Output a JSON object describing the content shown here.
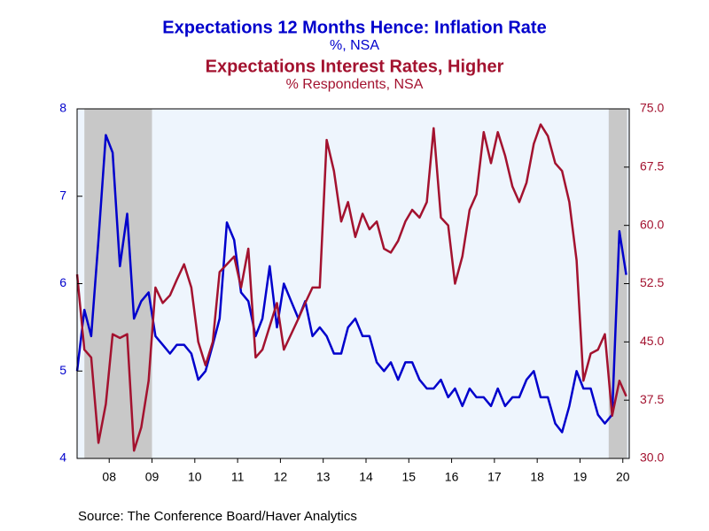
{
  "chart_data": {
    "type": "line",
    "title": "Expectations 12 Months Hence: Inflation Rate",
    "subtitle": "%, NSA",
    "title2": "Expectations Interest Rates, Higher",
    "subtitle2": "% Respondents, NSA",
    "source": "Source:  The Conference Board/Haver Analytics",
    "x": [
      2007.75,
      2007.92,
      2008.08,
      2008.25,
      2008.42,
      2008.58,
      2008.75,
      2008.92,
      2009.08,
      2009.25,
      2009.42,
      2009.58,
      2009.75,
      2009.92,
      2010.08,
      2010.25,
      2010.42,
      2010.58,
      2010.75,
      2010.92,
      2011.08,
      2011.25,
      2011.42,
      2011.58,
      2011.75,
      2011.92,
      2012.08,
      2012.25,
      2012.42,
      2012.58,
      2012.75,
      2012.92,
      2013.08,
      2013.25,
      2013.42,
      2013.58,
      2013.75,
      2013.92,
      2014.08,
      2014.25,
      2014.42,
      2014.58,
      2014.75,
      2014.92,
      2015.08,
      2015.25,
      2015.42,
      2015.58,
      2015.75,
      2015.92,
      2016.08,
      2016.25,
      2016.42,
      2016.58,
      2016.75,
      2016.92,
      2017.08,
      2017.25,
      2017.42,
      2017.58,
      2017.75,
      2017.92,
      2018.08,
      2018.25,
      2018.42,
      2018.58,
      2018.75,
      2018.92,
      2019.08,
      2019.25,
      2019.42,
      2019.58,
      2019.75,
      2019.92,
      2020.08,
      2020.25,
      2020.42,
      2020.58
    ],
    "series": [
      {
        "name": "Expectations 12 Months Hence: Inflation Rate",
        "color": "#0000cc",
        "values": [
          5.0,
          5.7,
          5.4,
          6.5,
          7.7,
          7.5,
          6.2,
          6.8,
          5.6,
          5.8,
          5.9,
          5.4,
          5.3,
          5.2,
          5.3,
          5.3,
          5.2,
          4.9,
          5.0,
          5.3,
          5.6,
          6.7,
          6.5,
          5.9,
          5.8,
          5.4,
          5.6,
          6.2,
          5.5,
          6.0,
          5.8,
          5.6,
          5.8,
          5.4,
          5.5,
          5.4,
          5.2,
          5.2,
          5.5,
          5.6,
          5.4,
          5.4,
          5.1,
          5.0,
          5.1,
          4.9,
          5.1,
          5.1,
          4.9,
          4.8,
          4.8,
          4.9,
          4.7,
          4.8,
          4.6,
          4.8,
          4.7,
          4.7,
          4.6,
          4.8,
          4.6,
          4.7,
          4.7,
          4.9,
          5.0,
          4.7,
          4.7,
          4.4,
          4.3,
          4.6,
          5.0,
          4.8,
          4.8,
          4.5,
          4.4,
          4.5,
          6.6,
          6.1
        ]
      },
      {
        "name": "Expectations Interest Rates, Higher",
        "color": "#a3122f",
        "axis": "y2",
        "values": [
          53.7,
          44,
          43,
          32,
          37,
          46,
          45.5,
          46,
          31,
          34,
          40,
          52,
          50,
          51,
          53,
          55,
          52,
          45,
          42,
          45,
          54,
          55,
          56,
          52,
          57,
          43,
          44,
          47,
          50,
          44,
          46,
          48,
          50,
          52,
          52,
          71,
          67,
          60.5,
          63,
          58.5,
          61.5,
          59.5,
          60.5,
          57,
          56.5,
          58,
          60.5,
          62,
          61,
          63,
          72.5,
          61,
          60,
          52.5,
          56,
          62,
          64,
          72,
          68,
          72,
          69,
          65,
          63,
          65.5,
          70.5,
          73,
          71.5,
          68,
          67,
          63,
          55.5,
          40,
          43.5,
          44,
          46,
          35.5,
          40,
          38
        ]
      }
    ],
    "shading": [
      [
        2007.92,
        2009.5
      ],
      [
        2020.17,
        2020.6
      ]
    ],
    "shading_color": "#c8c8c8",
    "xlim": [
      2007.75,
      2020.65
    ],
    "xticks": [
      {
        "value": 2008.5,
        "label": "08"
      },
      {
        "value": 2009.5,
        "label": "09"
      },
      {
        "value": 2010.5,
        "label": "10"
      },
      {
        "value": 2011.5,
        "label": "11"
      },
      {
        "value": 2012.5,
        "label": "12"
      },
      {
        "value": 2013.5,
        "label": "13"
      },
      {
        "value": 2014.5,
        "label": "14"
      },
      {
        "value": 2015.5,
        "label": "15"
      },
      {
        "value": 2016.5,
        "label": "16"
      },
      {
        "value": 2017.5,
        "label": "17"
      },
      {
        "value": 2018.5,
        "label": "18"
      },
      {
        "value": 2019.5,
        "label": "19"
      },
      {
        "value": 2020.5,
        "label": "20"
      }
    ],
    "ylim": [
      4,
      8
    ],
    "yticks": [
      4,
      5,
      6,
      7,
      8
    ],
    "y2lim": [
      30,
      75
    ],
    "y2ticks": [
      {
        "value": 30,
        "label": "30.0"
      },
      {
        "value": 37.5,
        "label": "37.5"
      },
      {
        "value": 45,
        "label": "45.0"
      },
      {
        "value": 52.5,
        "label": "52.5"
      },
      {
        "value": 60,
        "label": "60.0"
      },
      {
        "value": 67.5,
        "label": "67.5"
      },
      {
        "value": 75,
        "label": "75.0"
      }
    ]
  }
}
